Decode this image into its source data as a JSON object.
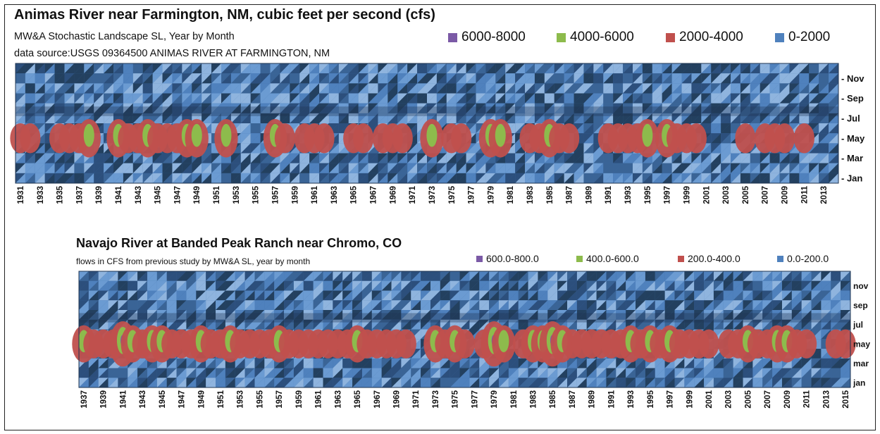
{
  "chart_data": [
    {
      "type": "heatmap",
      "title": "Animas River near Farmington, NM,  cubic feet per second (cfs)",
      "subtitle": "MW&A Stochastic Landscape SL, Year by Month",
      "source": "data source:USGS 09364500 ANIMAS RIVER AT FARMINGTON, NM",
      "legend": {
        "placement": "top-right",
        "entries": [
          {
            "label": "6000-8000",
            "color": "#7b5aa6"
          },
          {
            "label": "4000-6000",
            "color": "#8dbb4c"
          },
          {
            "label": "2000-4000",
            "color": "#c0504d"
          },
          {
            "label": "0-2000",
            "color": "#4f81bd"
          }
        ]
      },
      "x_range": [
        1931,
        2014
      ],
      "x_ticks": [
        "1931",
        "1933",
        "1935",
        "1937",
        "1939",
        "1941",
        "1943",
        "1945",
        "1947",
        "1949",
        "1951",
        "1953",
        "1955",
        "1957",
        "1959",
        "1961",
        "1963",
        "1965",
        "1967",
        "1969",
        "1971",
        "1973",
        "1975",
        "1977",
        "1979",
        "1981",
        "1983",
        "1985",
        "1987",
        "1989",
        "1991",
        "1993",
        "1995",
        "1997",
        "1999",
        "2001",
        "2003",
        "2005",
        "2007",
        "2009",
        "2011",
        "2013"
      ],
      "y_ticks": [
        "Jan",
        "Mar",
        "May",
        "Jul",
        "Sep",
        "Nov"
      ],
      "peak_flow_class_by_year": [
        {
          "year": 1931,
          "class": 1
        },
        {
          "year": 1932,
          "class": 1
        },
        {
          "year": 1933,
          "class": 0
        },
        {
          "year": 1934,
          "class": 0
        },
        {
          "year": 1935,
          "class": 1
        },
        {
          "year": 1936,
          "class": 1
        },
        {
          "year": 1937,
          "class": 1
        },
        {
          "year": 1938,
          "class": 2
        },
        {
          "year": 1939,
          "class": 0
        },
        {
          "year": 1940,
          "class": 0
        },
        {
          "year": 1941,
          "class": 2
        },
        {
          "year": 1942,
          "class": 1
        },
        {
          "year": 1943,
          "class": 1
        },
        {
          "year": 1944,
          "class": 2
        },
        {
          "year": 1945,
          "class": 1
        },
        {
          "year": 1946,
          "class": 1
        },
        {
          "year": 1947,
          "class": 1
        },
        {
          "year": 1948,
          "class": 2
        },
        {
          "year": 1949,
          "class": 2
        },
        {
          "year": 1950,
          "class": 0
        },
        {
          "year": 1951,
          "class": 0
        },
        {
          "year": 1952,
          "class": 2
        },
        {
          "year": 1953,
          "class": 0
        },
        {
          "year": 1954,
          "class": 0
        },
        {
          "year": 1955,
          "class": 0
        },
        {
          "year": 1956,
          "class": 0
        },
        {
          "year": 1957,
          "class": 2
        },
        {
          "year": 1958,
          "class": 1
        },
        {
          "year": 1959,
          "class": 0
        },
        {
          "year": 1960,
          "class": 1
        },
        {
          "year": 1961,
          "class": 1
        },
        {
          "year": 1962,
          "class": 1
        },
        {
          "year": 1963,
          "class": 0
        },
        {
          "year": 1964,
          "class": 0
        },
        {
          "year": 1965,
          "class": 1
        },
        {
          "year": 1966,
          "class": 1
        },
        {
          "year": 1967,
          "class": 0
        },
        {
          "year": 1968,
          "class": 1
        },
        {
          "year": 1969,
          "class": 1
        },
        {
          "year": 1970,
          "class": 1
        },
        {
          "year": 1971,
          "class": 0
        },
        {
          "year": 1972,
          "class": 0
        },
        {
          "year": 1973,
          "class": 2
        },
        {
          "year": 1974,
          "class": 0
        },
        {
          "year": 1975,
          "class": 1
        },
        {
          "year": 1976,
          "class": 1
        },
        {
          "year": 1977,
          "class": 0
        },
        {
          "year": 1978,
          "class": 0
        },
        {
          "year": 1979,
          "class": 2
        },
        {
          "year": 1980,
          "class": 2
        },
        {
          "year": 1981,
          "class": 0
        },
        {
          "year": 1982,
          "class": 0
        },
        {
          "year": 1983,
          "class": 1
        },
        {
          "year": 1984,
          "class": 1
        },
        {
          "year": 1985,
          "class": 2
        },
        {
          "year": 1986,
          "class": 1
        },
        {
          "year": 1987,
          "class": 1
        },
        {
          "year": 1988,
          "class": 0
        },
        {
          "year": 1989,
          "class": 0
        },
        {
          "year": 1990,
          "class": 0
        },
        {
          "year": 1991,
          "class": 1
        },
        {
          "year": 1992,
          "class": 1
        },
        {
          "year": 1993,
          "class": 1
        },
        {
          "year": 1994,
          "class": 1
        },
        {
          "year": 1995,
          "class": 2
        },
        {
          "year": 1996,
          "class": 0
        },
        {
          "year": 1997,
          "class": 2
        },
        {
          "year": 1998,
          "class": 1
        },
        {
          "year": 1999,
          "class": 1
        },
        {
          "year": 2000,
          "class": 1
        },
        {
          "year": 2001,
          "class": 0
        },
        {
          "year": 2002,
          "class": 0
        },
        {
          "year": 2003,
          "class": 0
        },
        {
          "year": 2004,
          "class": 0
        },
        {
          "year": 2005,
          "class": 1
        },
        {
          "year": 2006,
          "class": 0
        },
        {
          "year": 2007,
          "class": 1
        },
        {
          "year": 2008,
          "class": 1
        },
        {
          "year": 2009,
          "class": 1
        },
        {
          "year": 2010,
          "class": 0
        },
        {
          "year": 2011,
          "class": 1
        },
        {
          "year": 2012,
          "class": 0
        },
        {
          "year": 2013,
          "class": 0
        },
        {
          "year": 2014,
          "class": 0
        }
      ]
    },
    {
      "type": "heatmap",
      "title": "Navajo River at Banded Peak Ranch near Chromo, CO",
      "subtitle": "flows in CFS        from previous study by MW&A SL, year by month",
      "legend": {
        "placement": "top-right",
        "entries": [
          {
            "label": "600.0-800.0",
            "color": "#7b5aa6"
          },
          {
            "label": "400.0-600.0",
            "color": "#8dbb4c"
          },
          {
            "label": "200.0-400.0",
            "color": "#c0504d"
          },
          {
            "label": "0.0-200.0",
            "color": "#4f81bd"
          }
        ]
      },
      "x_range": [
        1937,
        2015
      ],
      "x_ticks": [
        "1937",
        "1939",
        "1941",
        "1943",
        "1945",
        "1947",
        "1949",
        "1951",
        "1953",
        "1955",
        "1957",
        "1959",
        "1961",
        "1963",
        "1965",
        "1967",
        "1969",
        "1971",
        "1973",
        "1975",
        "1977",
        "1979",
        "1981",
        "1983",
        "1985",
        "1987",
        "1989",
        "1991",
        "1993",
        "1995",
        "1997",
        "1999",
        "2001",
        "2003",
        "2005",
        "2007",
        "2009",
        "2011",
        "2013",
        "2015"
      ],
      "y_ticks": [
        "jan",
        "mar",
        "may",
        "jul",
        "sep",
        "nov"
      ],
      "peak_flow_class_by_year": [
        {
          "year": 1937,
          "class": 2
        },
        {
          "year": 1938,
          "class": 1
        },
        {
          "year": 1939,
          "class": 1
        },
        {
          "year": 1940,
          "class": 1
        },
        {
          "year": 1941,
          "class": 3
        },
        {
          "year": 1942,
          "class": 2
        },
        {
          "year": 1943,
          "class": 1
        },
        {
          "year": 1944,
          "class": 2
        },
        {
          "year": 1945,
          "class": 2
        },
        {
          "year": 1946,
          "class": 1
        },
        {
          "year": 1947,
          "class": 1
        },
        {
          "year": 1948,
          "class": 1
        },
        {
          "year": 1949,
          "class": 2
        },
        {
          "year": 1950,
          "class": 1
        },
        {
          "year": 1951,
          "class": 1
        },
        {
          "year": 1952,
          "class": 2
        },
        {
          "year": 1953,
          "class": 1
        },
        {
          "year": 1954,
          "class": 1
        },
        {
          "year": 1955,
          "class": 1
        },
        {
          "year": 1956,
          "class": 1
        },
        {
          "year": 1957,
          "class": 2
        },
        {
          "year": 1958,
          "class": 1
        },
        {
          "year": 1959,
          "class": 1
        },
        {
          "year": 1960,
          "class": 1
        },
        {
          "year": 1961,
          "class": 1
        },
        {
          "year": 1962,
          "class": 1
        },
        {
          "year": 1963,
          "class": 1
        },
        {
          "year": 1964,
          "class": 1
        },
        {
          "year": 1965,
          "class": 2
        },
        {
          "year": 1966,
          "class": 1
        },
        {
          "year": 1967,
          "class": 1
        },
        {
          "year": 1968,
          "class": 1
        },
        {
          "year": 1969,
          "class": 1
        },
        {
          "year": 1970,
          "class": 1
        },
        {
          "year": 1971,
          "class": 0
        },
        {
          "year": 1972,
          "class": 0
        },
        {
          "year": 1973,
          "class": 2
        },
        {
          "year": 1974,
          "class": 1
        },
        {
          "year": 1975,
          "class": 2
        },
        {
          "year": 1976,
          "class": 1
        },
        {
          "year": 1977,
          "class": 0
        },
        {
          "year": 1978,
          "class": 1
        },
        {
          "year": 1979,
          "class": 3
        },
        {
          "year": 1980,
          "class": 2
        },
        {
          "year": 1981,
          "class": 0
        },
        {
          "year": 1982,
          "class": 1
        },
        {
          "year": 1983,
          "class": 2
        },
        {
          "year": 1984,
          "class": 2
        },
        {
          "year": 1985,
          "class": 3
        },
        {
          "year": 1986,
          "class": 2
        },
        {
          "year": 1987,
          "class": 1
        },
        {
          "year": 1988,
          "class": 1
        },
        {
          "year": 1989,
          "class": 1
        },
        {
          "year": 1990,
          "class": 1
        },
        {
          "year": 1991,
          "class": 1
        },
        {
          "year": 1992,
          "class": 1
        },
        {
          "year": 1993,
          "class": 2
        },
        {
          "year": 1994,
          "class": 1
        },
        {
          "year": 1995,
          "class": 2
        },
        {
          "year": 1996,
          "class": 1
        },
        {
          "year": 1997,
          "class": 2
        },
        {
          "year": 1998,
          "class": 1
        },
        {
          "year": 1999,
          "class": 1
        },
        {
          "year": 2000,
          "class": 1
        },
        {
          "year": 2001,
          "class": 1
        },
        {
          "year": 2002,
          "class": 0
        },
        {
          "year": 2003,
          "class": 1
        },
        {
          "year": 2004,
          "class": 1
        },
        {
          "year": 2005,
          "class": 2
        },
        {
          "year": 2006,
          "class": 1
        },
        {
          "year": 2007,
          "class": 1
        },
        {
          "year": 2008,
          "class": 2
        },
        {
          "year": 2009,
          "class": 2
        },
        {
          "year": 2010,
          "class": 1
        },
        {
          "year": 2011,
          "class": 1
        },
        {
          "year": 2012,
          "class": 0
        },
        {
          "year": 2013,
          "class": 0
        },
        {
          "year": 2014,
          "class": 1
        },
        {
          "year": 2015,
          "class": 1
        }
      ]
    }
  ]
}
